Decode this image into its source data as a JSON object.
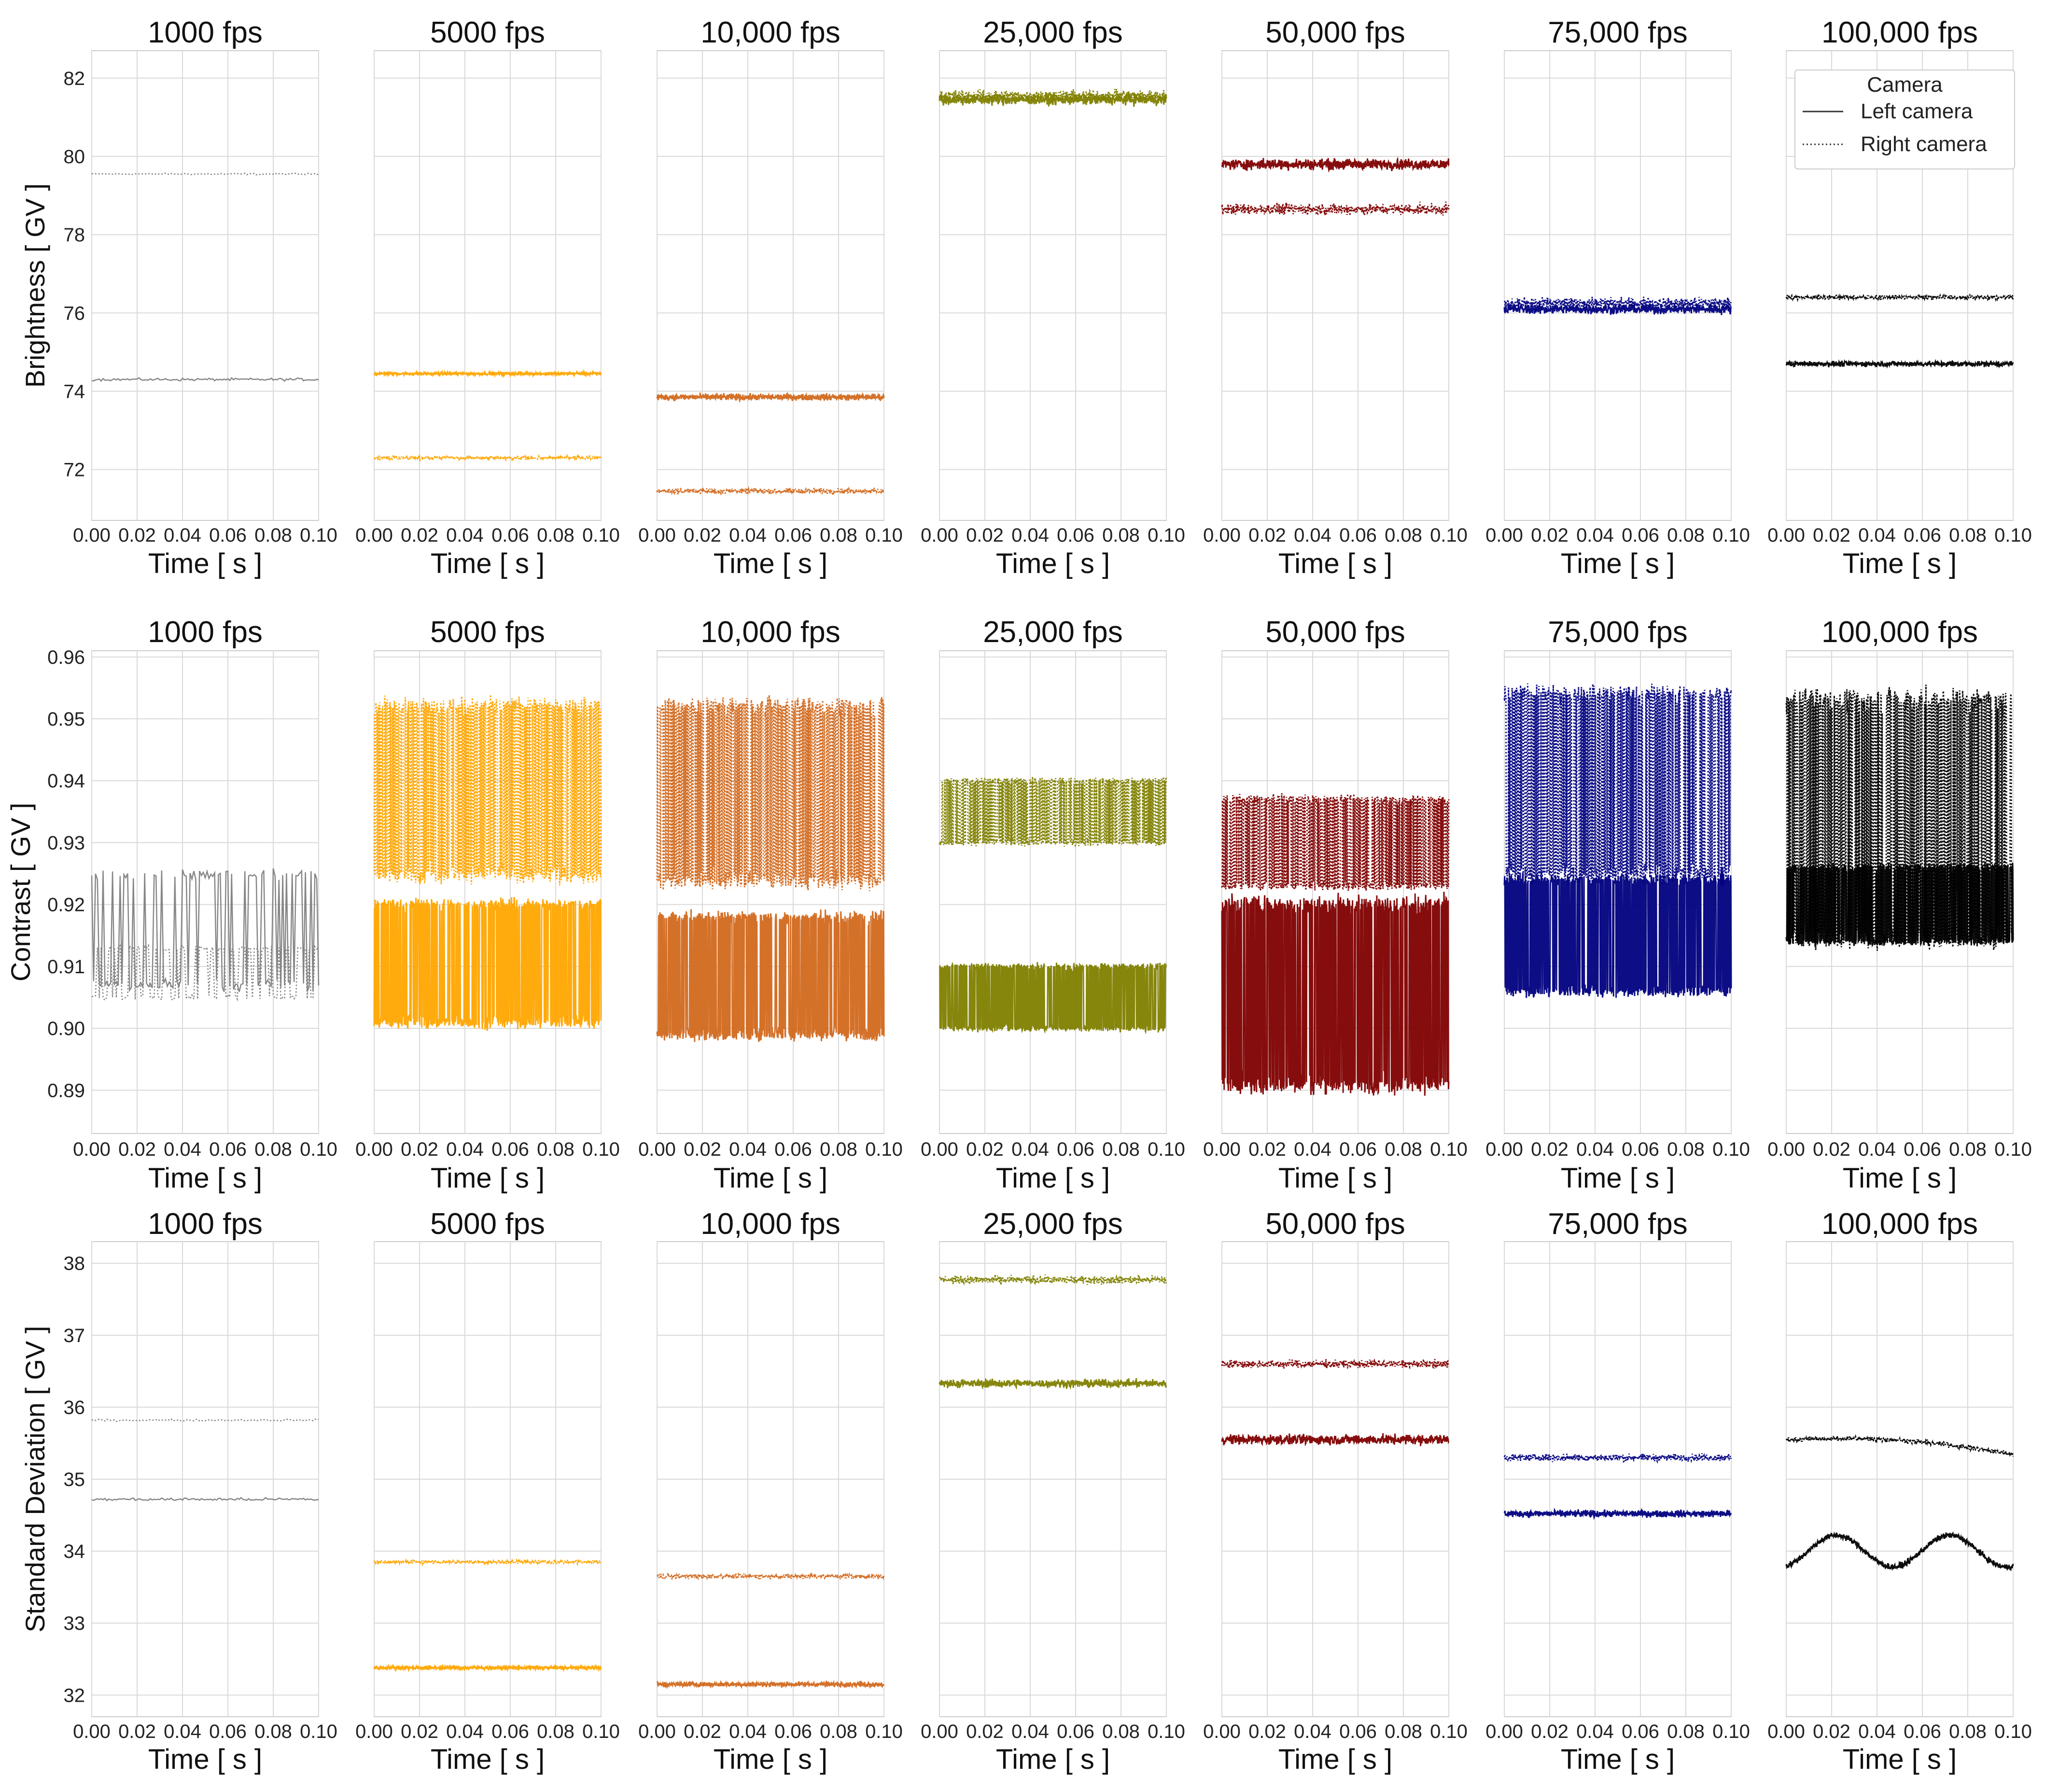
{
  "chart_data": {
    "type": "line",
    "layout": "3 rows x 7 columns of small-multiple line plots",
    "panel_titles": [
      "1000 fps",
      "5000 fps",
      "10,000 fps",
      "25,000 fps",
      "50,000 fps",
      "75,000 fps",
      "100,000 fps"
    ],
    "series_colors": {
      "1000 fps": "#808080",
      "5000 fps": "#FFA500",
      "10,000 fps": "#D2691E",
      "25,000 fps": "#808000",
      "50,000 fps": "#800000",
      "75,000 fps": "#000080",
      "100,000 fps": "#000000"
    },
    "xlabel": "Time [ s ]",
    "xlim": [
      0.0,
      0.1
    ],
    "xticks": [
      "0.00",
      "0.02",
      "0.04",
      "0.06",
      "0.08",
      "0.10"
    ],
    "legend": {
      "title": "Camera",
      "entries": [
        {
          "label": "Left camera",
          "linestyle": "solid"
        },
        {
          "label": "Right camera",
          "linestyle": "dotted"
        }
      ],
      "placement": "top-right of first row, last panel"
    },
    "grid": true,
    "rows": [
      {
        "ylabel": "Brightness [ GV ]",
        "ylim": [
          70.7,
          82.7
        ],
        "yticks": [
          "72",
          "74",
          "76",
          "78",
          "80",
          "82"
        ],
        "panels": [
          {
            "title": "1000 fps",
            "left": {
              "mean": 74.3,
              "noise": 0.05
            },
            "right": {
              "mean": 79.55,
              "noise": 0.03
            }
          },
          {
            "title": "5000 fps",
            "left": {
              "mean": 74.45,
              "noise": 0.06
            },
            "right": {
              "mean": 72.3,
              "noise": 0.06
            }
          },
          {
            "title": "10,000 fps",
            "left": {
              "mean": 73.85,
              "noise": 0.12
            },
            "right": {
              "mean": 71.45,
              "noise": 0.1
            }
          },
          {
            "title": "25,000 fps",
            "left": {
              "mean": 81.45,
              "noise": 0.2
            },
            "right": {
              "mean": 81.55,
              "noise": 0.2
            }
          },
          {
            "title": "50,000 fps",
            "left": {
              "mean": 79.8,
              "noise": 0.2
            },
            "right": {
              "mean": 78.65,
              "noise": 0.2
            }
          },
          {
            "title": "75,000 fps",
            "left": {
              "mean": 76.1,
              "noise": 0.18
            },
            "right": {
              "mean": 76.25,
              "noise": 0.2
            }
          },
          {
            "title": "100,000 fps",
            "left": {
              "mean": 74.7,
              "noise": 0.1
            },
            "right": {
              "mean": 76.4,
              "noise": 0.08
            }
          }
        ]
      },
      {
        "ylabel": "Contrast [ GV ]",
        "ylim": [
          0.883,
          0.961
        ],
        "yticks": [
          "0.89",
          "0.90",
          "0.91",
          "0.92",
          "0.93",
          "0.94",
          "0.95",
          "0.96"
        ],
        "panels": [
          {
            "title": "1000 fps",
            "left": {
              "low": 0.907,
              "high": 0.925
            },
            "right": {
              "low": 0.905,
              "high": 0.913
            }
          },
          {
            "title": "5000 fps",
            "left": {
              "low": 0.901,
              "high": 0.92
            },
            "right": {
              "low": 0.925,
              "high": 0.952
            }
          },
          {
            "title": "10,000 fps",
            "left": {
              "low": 0.899,
              "high": 0.918
            },
            "right": {
              "low": 0.924,
              "high": 0.952
            }
          },
          {
            "title": "25,000 fps",
            "left": {
              "low": 0.9,
              "high": 0.91
            },
            "right": {
              "low": 0.93,
              "high": 0.94
            }
          },
          {
            "title": "50,000 fps",
            "left": {
              "low": 0.891,
              "high": 0.92
            },
            "right": {
              "low": 0.923,
              "high": 0.937
            }
          },
          {
            "title": "75,000 fps",
            "left": {
              "low": 0.906,
              "high": 0.924
            },
            "right": {
              "low": 0.925,
              "high": 0.954
            }
          },
          {
            "title": "100,000 fps",
            "left": {
              "low": 0.914,
              "high": 0.926
            },
            "right": {
              "low": 0.915,
              "high": 0.953
            }
          }
        ]
      },
      {
        "ylabel": "Standard Deviation [ GV ]",
        "ylim": [
          31.7,
          38.3
        ],
        "yticks": [
          "32",
          "33",
          "34",
          "35",
          "36",
          "37",
          "38"
        ],
        "panels": [
          {
            "title": "1000 fps",
            "left": {
              "mean": 34.72,
              "noise": 0.03
            },
            "right": {
              "mean": 35.82,
              "noise": 0.02
            }
          },
          {
            "title": "5000 fps",
            "left": {
              "mean": 32.38,
              "noise": 0.04
            },
            "right": {
              "mean": 33.85,
              "noise": 0.04
            }
          },
          {
            "title": "10,000 fps",
            "left": {
              "mean": 32.15,
              "noise": 0.05
            },
            "right": {
              "mean": 33.65,
              "noise": 0.05
            }
          },
          {
            "title": "25,000 fps",
            "left": {
              "mean": 36.33,
              "noise": 0.08
            },
            "right": {
              "mean": 37.77,
              "noise": 0.08
            }
          },
          {
            "title": "50,000 fps",
            "left": {
              "mean": 35.55,
              "noise": 0.1
            },
            "right": {
              "mean": 36.6,
              "noise": 0.08
            }
          },
          {
            "title": "75,000 fps",
            "left": {
              "mean": 34.52,
              "noise": 0.07
            },
            "right": {
              "mean": 35.3,
              "noise": 0.07
            }
          },
          {
            "title": "100,000 fps",
            "left": {
              "mean": 34.0,
              "noise": 0.06
            },
            "right": {
              "mean": 35.55,
              "noise": 0.05
            }
          }
        ]
      }
    ]
  }
}
